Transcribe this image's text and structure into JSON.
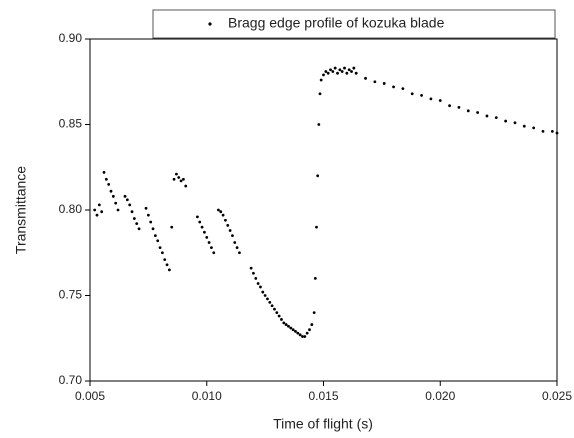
{
  "chart_data": {
    "type": "scatter",
    "xlabel": "Time of flight (s)",
    "ylabel": "Transmittance",
    "legend_loc": "upper",
    "series": [
      {
        "name": "Bragg edge profile of kozuka blade",
        "color": "#000000",
        "x": [
          0.0052,
          0.0053,
          0.0054,
          0.0055,
          0.0056,
          0.0057,
          0.0058,
          0.0059,
          0.006,
          0.0061,
          0.0062,
          0.0065,
          0.0066,
          0.0067,
          0.0068,
          0.0069,
          0.007,
          0.0071,
          0.0074,
          0.0075,
          0.0076,
          0.0077,
          0.0078,
          0.0079,
          0.008,
          0.0081,
          0.0082,
          0.0083,
          0.0084,
          0.0085,
          0.0086,
          0.0087,
          0.0088,
          0.0089,
          0.009,
          0.0091,
          0.0096,
          0.0097,
          0.0098,
          0.0099,
          0.01,
          0.0101,
          0.0102,
          0.0103,
          0.0105,
          0.0106,
          0.0107,
          0.0108,
          0.0109,
          0.011,
          0.0111,
          0.0112,
          0.0113,
          0.0114,
          0.0119,
          0.012,
          0.0121,
          0.0122,
          0.0123,
          0.0124,
          0.0125,
          0.0126,
          0.0127,
          0.0128,
          0.0129,
          0.013,
          0.0131,
          0.0132,
          0.0133,
          0.0134,
          0.0135,
          0.0136,
          0.0137,
          0.0138,
          0.0139,
          0.014,
          0.0141,
          0.0142,
          0.0143,
          0.0144,
          0.0145,
          0.0146,
          0.01465,
          0.0147,
          0.01475,
          0.0148,
          0.01485,
          0.0149,
          0.015,
          0.0151,
          0.0152,
          0.0153,
          0.0154,
          0.0155,
          0.0156,
          0.0157,
          0.0158,
          0.0159,
          0.016,
          0.0161,
          0.0162,
          0.0163,
          0.0164,
          0.0168,
          0.0172,
          0.0176,
          0.018,
          0.0184,
          0.0188,
          0.0192,
          0.0196,
          0.02,
          0.0204,
          0.0208,
          0.0212,
          0.0216,
          0.022,
          0.0224,
          0.0228,
          0.0232,
          0.0236,
          0.024,
          0.0244,
          0.0248,
          0.025
        ],
        "values": [
          0.8,
          0.797,
          0.803,
          0.799,
          0.822,
          0.818,
          0.815,
          0.811,
          0.808,
          0.804,
          0.8,
          0.808,
          0.806,
          0.803,
          0.799,
          0.795,
          0.792,
          0.789,
          0.801,
          0.797,
          0.793,
          0.789,
          0.785,
          0.782,
          0.778,
          0.775,
          0.771,
          0.768,
          0.765,
          0.79,
          0.818,
          0.821,
          0.819,
          0.817,
          0.818,
          0.814,
          0.796,
          0.793,
          0.79,
          0.787,
          0.784,
          0.781,
          0.778,
          0.775,
          0.8,
          0.799,
          0.797,
          0.794,
          0.791,
          0.788,
          0.785,
          0.781,
          0.778,
          0.775,
          0.766,
          0.763,
          0.76,
          0.757,
          0.755,
          0.752,
          0.75,
          0.748,
          0.746,
          0.744,
          0.742,
          0.74,
          0.738,
          0.736,
          0.734,
          0.733,
          0.732,
          0.731,
          0.73,
          0.729,
          0.728,
          0.727,
          0.726,
          0.726,
          0.728,
          0.73,
          0.733,
          0.74,
          0.76,
          0.79,
          0.82,
          0.85,
          0.868,
          0.876,
          0.879,
          0.881,
          0.88,
          0.882,
          0.881,
          0.883,
          0.88,
          0.882,
          0.881,
          0.883,
          0.88,
          0.882,
          0.881,
          0.883,
          0.88,
          0.877,
          0.875,
          0.874,
          0.872,
          0.871,
          0.868,
          0.867,
          0.865,
          0.864,
          0.861,
          0.86,
          0.858,
          0.857,
          0.855,
          0.854,
          0.852,
          0.851,
          0.849,
          0.848,
          0.846,
          0.846,
          0.845
        ]
      }
    ],
    "xlim": [
      0.005,
      0.025
    ],
    "xticks": [
      0.005,
      {
        "value": 0.01,
        "label": "0.010"
      },
      0.015,
      {
        "value": 0.02,
        "label": "0.020"
      },
      0.025
    ],
    "ylim": [
      0.7,
      0.9
    ],
    "yticks": [
      {
        "value": 0.7,
        "label": "0.70"
      },
      0.75,
      {
        "value": 0.8,
        "label": "0.80"
      },
      0.85,
      {
        "value": 0.9,
        "label": "0.90"
      }
    ]
  }
}
